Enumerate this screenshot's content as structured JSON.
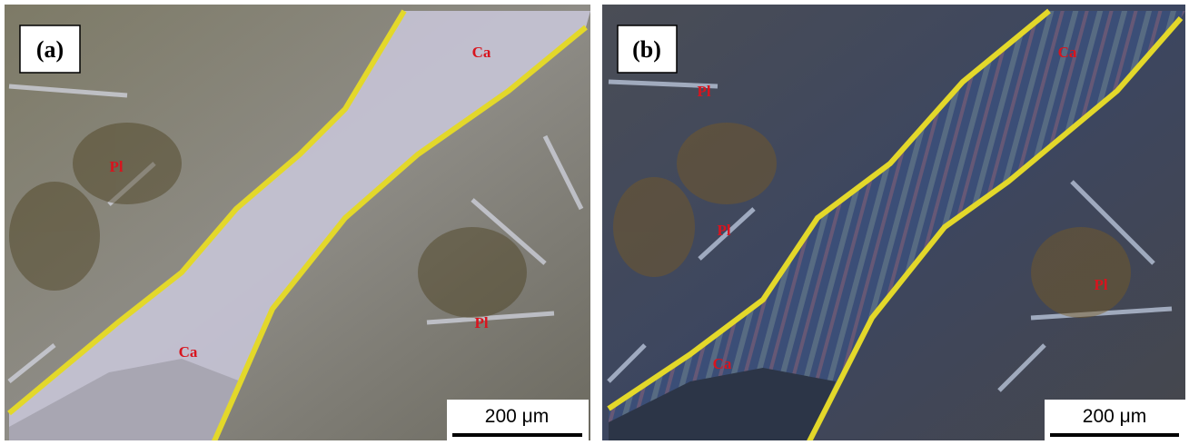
{
  "panels": [
    {
      "label": "(a)",
      "annotations": [
        "Ca",
        "Pl",
        "Pl",
        "Ca"
      ],
      "scale_bar": "200 μm"
    },
    {
      "label": "(b)",
      "annotations": [
        "Ca",
        "Pl",
        "Pl",
        "Pl",
        "Ca"
      ],
      "scale_bar": "200 μm"
    }
  ]
}
